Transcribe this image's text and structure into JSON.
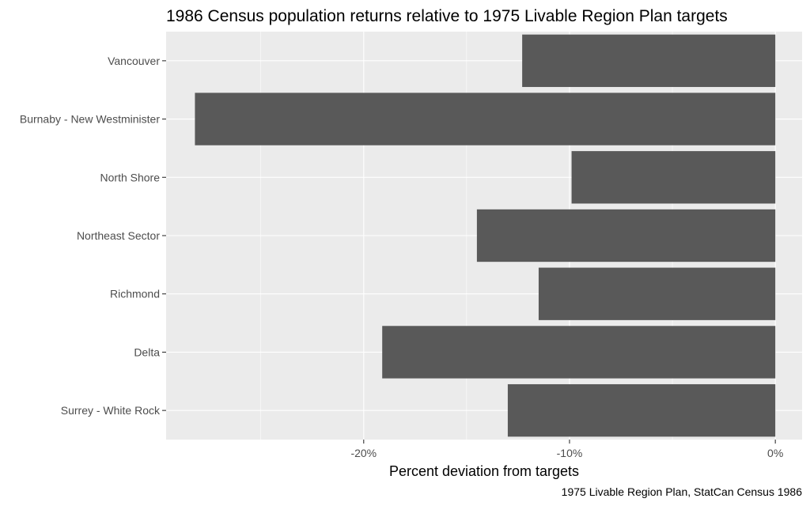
{
  "chart_data": {
    "type": "bar",
    "orientation": "horizontal",
    "title": "1986 Census population returns relative to 1975 Livable Region Plan targets",
    "xlabel": "Percent deviation from targets",
    "ylabel": "",
    "caption": "1975 Livable Region Plan, StatCan Census 1986",
    "categories": [
      "Vancouver",
      "Burnaby - New Westminister",
      "North Shore",
      "Northeast Sector",
      "Richmond",
      "Delta",
      "Surrey - White Rock"
    ],
    "values": [
      -12.3,
      -28.2,
      -9.9,
      -14.5,
      -11.5,
      -19.1,
      -13.0
    ],
    "xlim": [
      -29.6,
      1.3
    ],
    "xticks": [
      -20,
      -10,
      0
    ],
    "xtick_labels": [
      "-20%",
      "-10%",
      "0%"
    ],
    "xticks_minor": [
      -25,
      -15,
      -5
    ],
    "grid": true,
    "colors": {
      "bar": "#595959",
      "panel": "#ebebeb",
      "grid": "#ffffff"
    }
  }
}
